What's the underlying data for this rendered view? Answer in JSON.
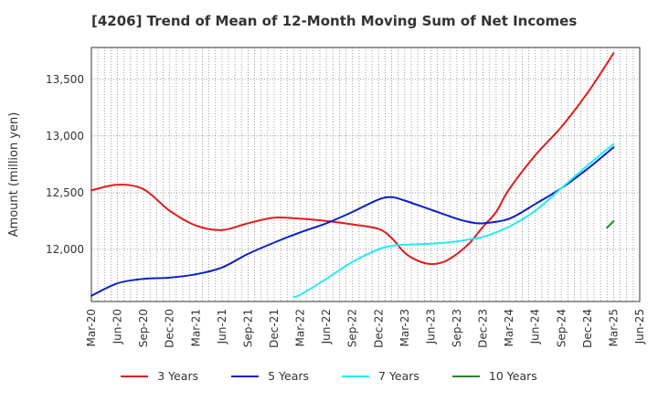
{
  "chart_data": {
    "type": "line",
    "title": "[4206]  Trend of Mean of 12-Month Moving Sum of Net Incomes",
    "xlabel": "",
    "ylabel": "Amount (million yen)",
    "ylim": [
      11540,
      13780
    ],
    "yticks": [
      12000,
      12500,
      13000,
      13500
    ],
    "ytick_labels": [
      "12,000",
      "12,500",
      "13,000",
      "13,500"
    ],
    "x_categories": [
      "Mar-20",
      "Jun-20",
      "Sep-20",
      "Dec-20",
      "Mar-21",
      "Jun-21",
      "Sep-21",
      "Dec-21",
      "Mar-22",
      "Jun-22",
      "Sep-22",
      "Dec-22",
      "Mar-23",
      "Jun-23",
      "Sep-23",
      "Dec-23",
      "Mar-24",
      "Jun-24",
      "Sep-24",
      "Dec-24",
      "Mar-25",
      "Jun-25"
    ],
    "grid": true,
    "legend_position": "bottom",
    "series": [
      {
        "name": "3 Years",
        "color": "#e31a1c",
        "points": [
          [
            0,
            12520
          ],
          [
            1,
            12570
          ],
          [
            2,
            12530
          ],
          [
            3,
            12340
          ],
          [
            4,
            12210
          ],
          [
            5,
            12170
          ],
          [
            6,
            12230
          ],
          [
            7,
            12280
          ],
          [
            8,
            12270
          ],
          [
            9,
            12250
          ],
          [
            10,
            12220
          ],
          [
            11,
            12180
          ],
          [
            11.5,
            12100
          ],
          [
            12,
            11970
          ],
          [
            12.5,
            11900
          ],
          [
            13,
            11870
          ],
          [
            13.5,
            11890
          ],
          [
            14,
            11960
          ],
          [
            14.5,
            12060
          ],
          [
            15,
            12200
          ],
          [
            15.5,
            12330
          ],
          [
            16,
            12530
          ],
          [
            17,
            12830
          ],
          [
            18,
            13080
          ],
          [
            19,
            13380
          ],
          [
            20,
            13730
          ]
        ]
      },
      {
        "name": "5 Years",
        "color": "#0a1fc9",
        "points": [
          [
            0,
            11590
          ],
          [
            1,
            11700
          ],
          [
            2,
            11740
          ],
          [
            3,
            11750
          ],
          [
            4,
            11780
          ],
          [
            5,
            11840
          ],
          [
            6,
            11960
          ],
          [
            7,
            12060
          ],
          [
            8,
            12150
          ],
          [
            9,
            12230
          ],
          [
            10,
            12330
          ],
          [
            11,
            12440
          ],
          [
            11.5,
            12460
          ],
          [
            12,
            12430
          ],
          [
            13,
            12350
          ],
          [
            14,
            12270
          ],
          [
            14.5,
            12240
          ],
          [
            15,
            12230
          ],
          [
            16,
            12270
          ],
          [
            17,
            12400
          ],
          [
            18,
            12540
          ],
          [
            19,
            12710
          ],
          [
            20,
            12900
          ]
        ]
      },
      {
        "name": "7 Years",
        "color": "#22ecf2",
        "points": [
          [
            7.75,
            11580
          ],
          [
            8,
            11600
          ],
          [
            9,
            11740
          ],
          [
            10,
            11890
          ],
          [
            11,
            12000
          ],
          [
            11.5,
            12030
          ],
          [
            12,
            12040
          ],
          [
            13,
            12050
          ],
          [
            14,
            12070
          ],
          [
            14.5,
            12090
          ],
          [
            15,
            12110
          ],
          [
            16,
            12200
          ],
          [
            17,
            12340
          ],
          [
            18,
            12540
          ],
          [
            19,
            12740
          ],
          [
            20,
            12930
          ]
        ]
      },
      {
        "name": "10 Years",
        "color": "#228b22",
        "points": [
          [
            19.75,
            12190
          ],
          [
            20,
            12250
          ]
        ]
      }
    ]
  }
}
